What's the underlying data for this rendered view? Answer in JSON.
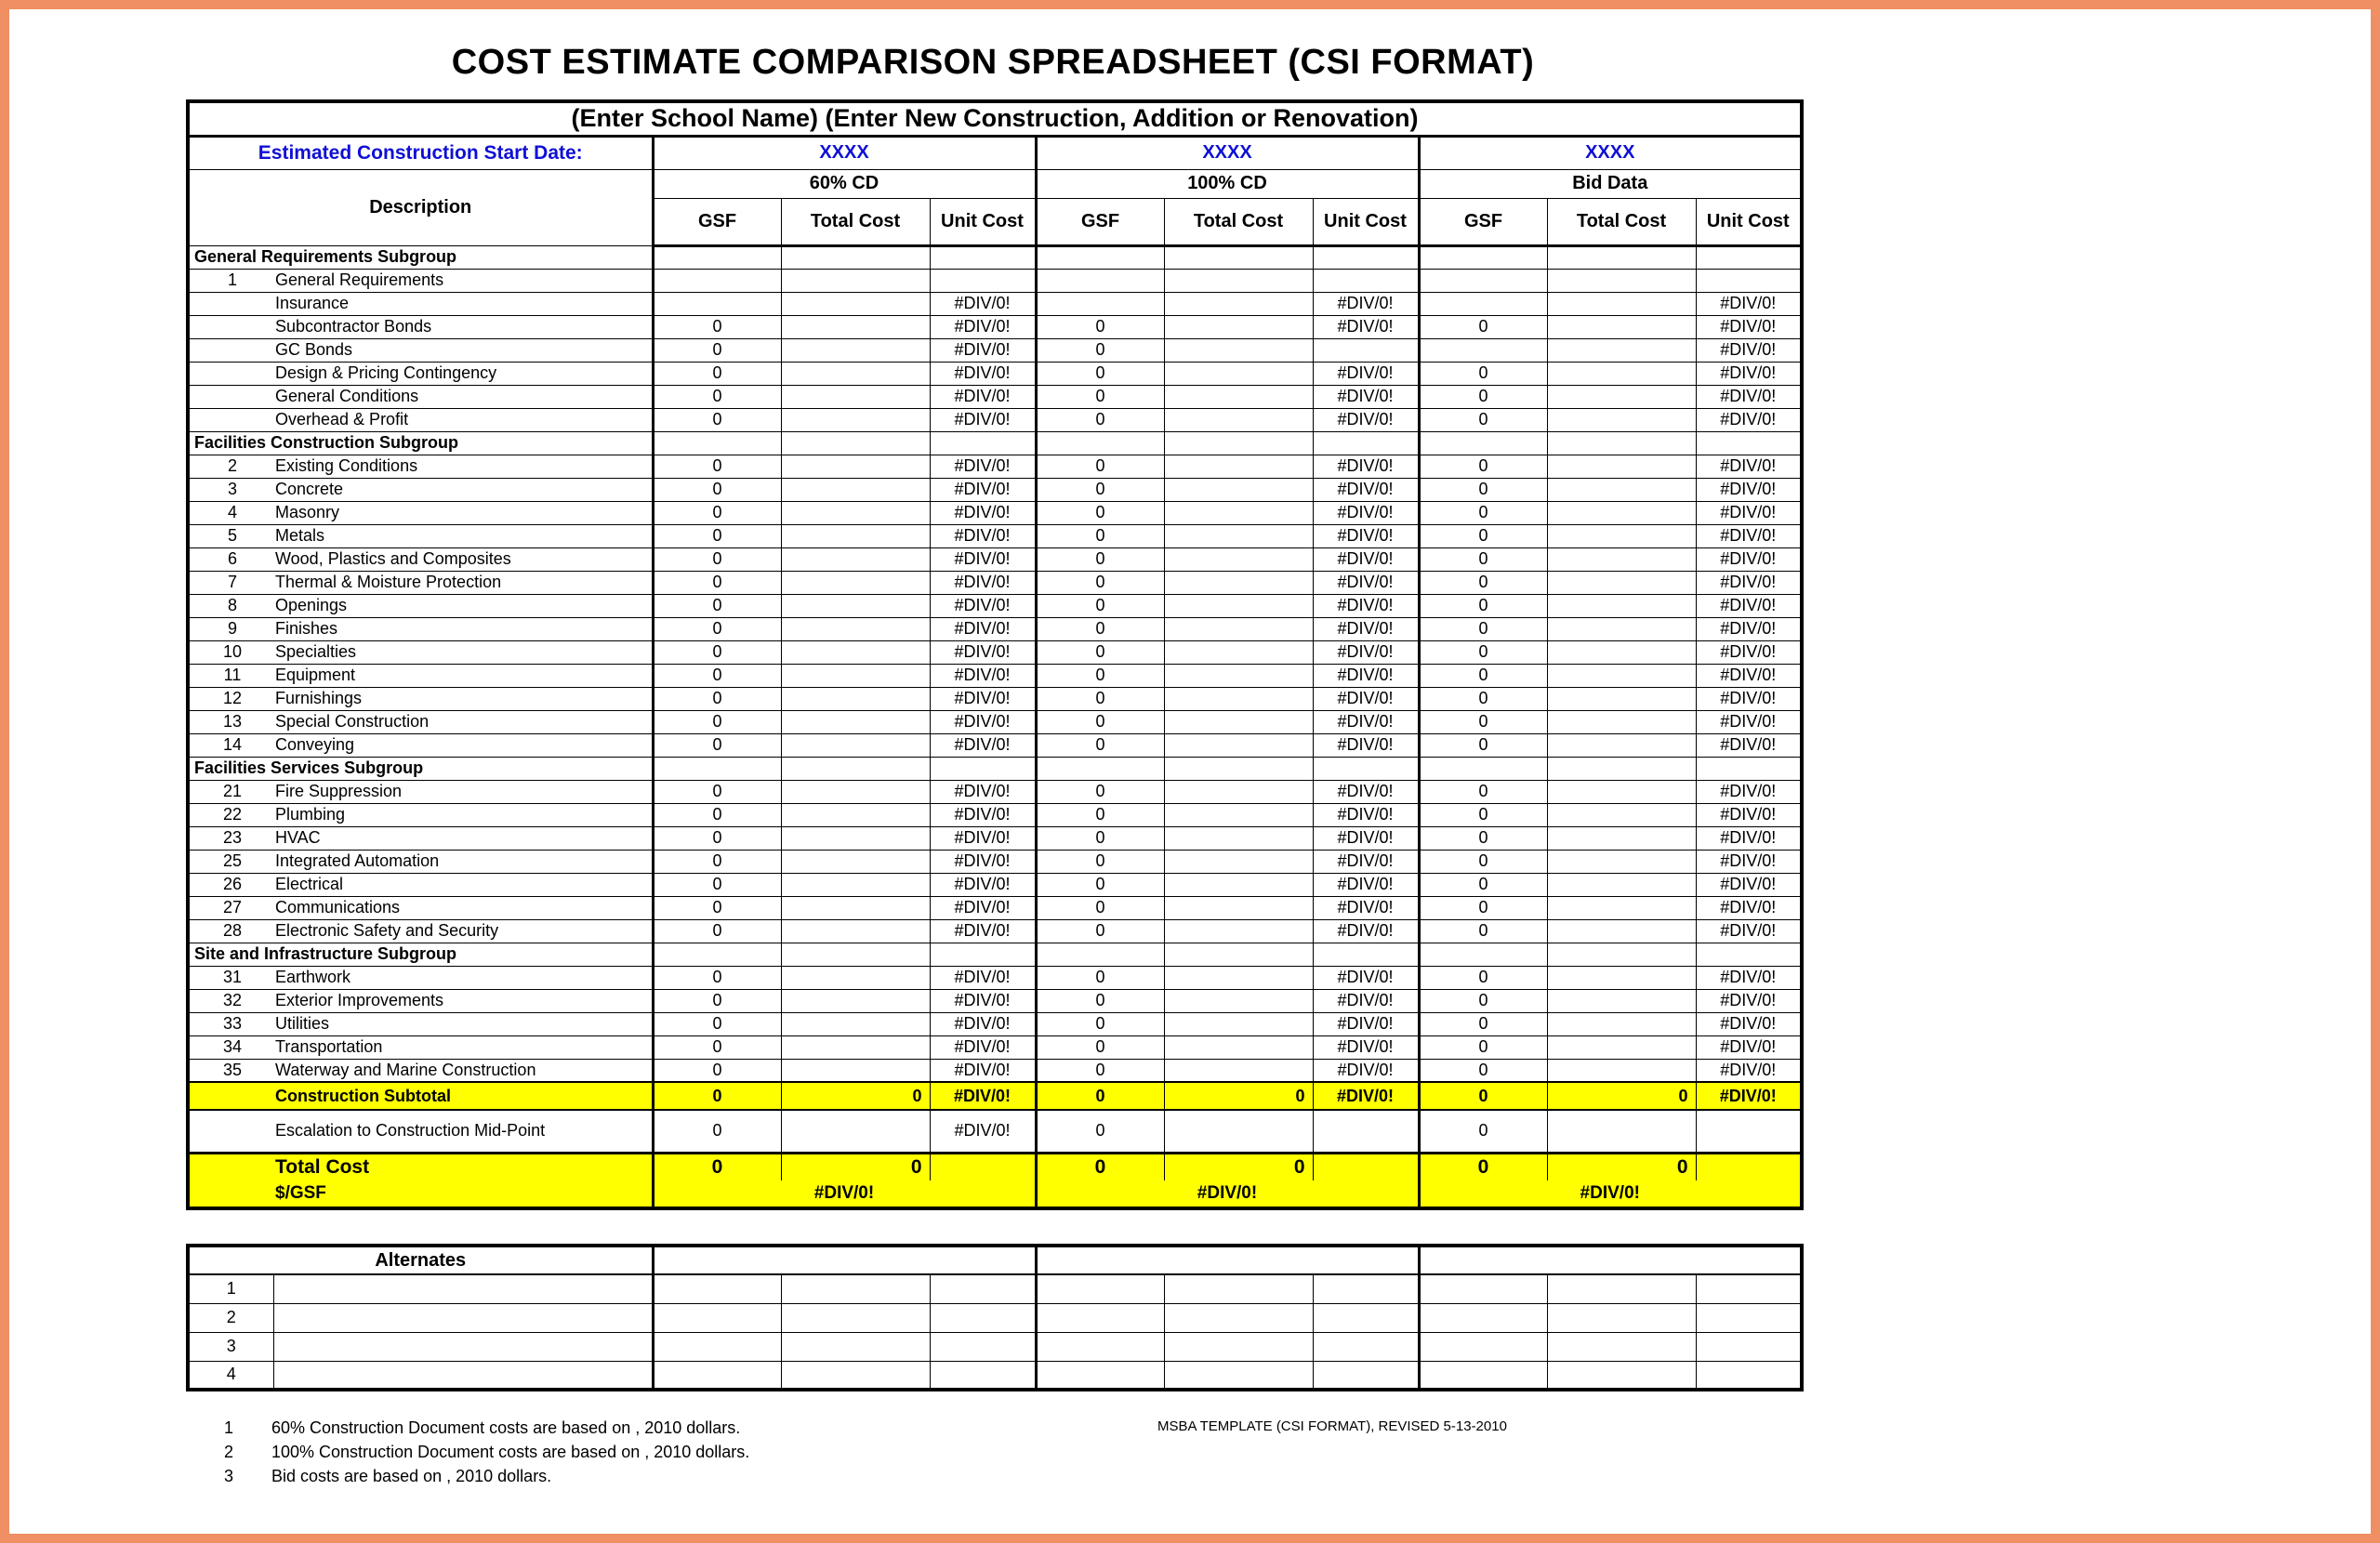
{
  "page": {
    "title": "COST ESTIMATE COMPARISON SPREADSHEET (CSI FORMAT)"
  },
  "colors": {
    "frame": "#F08F63",
    "highlight": "#FFFF00",
    "blue": "#0F0FD6"
  },
  "header": {
    "school_line": "(Enter School Name) (Enter New Construction, Addition or Renovation)",
    "start_date_label": "Estimated Construction Start Date:",
    "start_dates": [
      "XXXX",
      "XXXX",
      "XXXX"
    ],
    "groups": [
      "60% CD",
      "100% CD",
      "Bid Data"
    ],
    "description_label": "Description",
    "sub_columns": [
      "GSF",
      "Total Cost",
      "Unit Cost"
    ]
  },
  "main_rows": [
    {
      "type": "section",
      "label": "General Requirements Subgroup"
    },
    {
      "type": "item",
      "num": "1",
      "label": "General Requirements",
      "cells": [
        "",
        "",
        "",
        "",
        "",
        "",
        "",
        "",
        ""
      ]
    },
    {
      "type": "item",
      "num": "",
      "label": "Insurance",
      "cells": [
        "",
        "",
        "#DIV/0!",
        "",
        "",
        "#DIV/0!",
        "",
        "",
        "#DIV/0!"
      ]
    },
    {
      "type": "item",
      "num": "",
      "label": "Subcontractor Bonds",
      "cells": [
        "0",
        "",
        "#DIV/0!",
        "0",
        "",
        "#DIV/0!",
        "0",
        "",
        "#DIV/0!"
      ]
    },
    {
      "type": "item",
      "num": "",
      "label": "GC Bonds",
      "cells": [
        "0",
        "",
        "#DIV/0!",
        "0",
        "",
        "",
        "",
        "",
        "#DIV/0!"
      ]
    },
    {
      "type": "item",
      "num": "",
      "label": "Design & Pricing Contingency",
      "cells": [
        "0",
        "",
        "#DIV/0!",
        "0",
        "",
        "#DIV/0!",
        "0",
        "",
        "#DIV/0!"
      ]
    },
    {
      "type": "item",
      "num": "",
      "label": "General Conditions",
      "cells": [
        "0",
        "",
        "#DIV/0!",
        "0",
        "",
        "#DIV/0!",
        "0",
        "",
        "#DIV/0!"
      ]
    },
    {
      "type": "item",
      "num": "",
      "label": "Overhead & Profit",
      "cells": [
        "0",
        "",
        "#DIV/0!",
        "0",
        "",
        "#DIV/0!",
        "0",
        "",
        "#DIV/0!"
      ]
    },
    {
      "type": "section",
      "label": "Facilities Construction Subgroup"
    },
    {
      "type": "item",
      "num": "2",
      "label": "Existing Conditions",
      "cells": [
        "0",
        "",
        "#DIV/0!",
        "0",
        "",
        "#DIV/0!",
        "0",
        "",
        "#DIV/0!"
      ]
    },
    {
      "type": "item",
      "num": "3",
      "label": "Concrete",
      "cells": [
        "0",
        "",
        "#DIV/0!",
        "0",
        "",
        "#DIV/0!",
        "0",
        "",
        "#DIV/0!"
      ]
    },
    {
      "type": "item",
      "num": "4",
      "label": "Masonry",
      "cells": [
        "0",
        "",
        "#DIV/0!",
        "0",
        "",
        "#DIV/0!",
        "0",
        "",
        "#DIV/0!"
      ]
    },
    {
      "type": "item",
      "num": "5",
      "label": "Metals",
      "cells": [
        "0",
        "",
        "#DIV/0!",
        "0",
        "",
        "#DIV/0!",
        "0",
        "",
        "#DIV/0!"
      ]
    },
    {
      "type": "item",
      "num": "6",
      "label": "Wood, Plastics and Composites",
      "cells": [
        "0",
        "",
        "#DIV/0!",
        "0",
        "",
        "#DIV/0!",
        "0",
        "",
        "#DIV/0!"
      ]
    },
    {
      "type": "item",
      "num": "7",
      "label": "Thermal & Moisture Protection",
      "cells": [
        "0",
        "",
        "#DIV/0!",
        "0",
        "",
        "#DIV/0!",
        "0",
        "",
        "#DIV/0!"
      ]
    },
    {
      "type": "item",
      "num": "8",
      "label": "Openings",
      "cells": [
        "0",
        "",
        "#DIV/0!",
        "0",
        "",
        "#DIV/0!",
        "0",
        "",
        "#DIV/0!"
      ]
    },
    {
      "type": "item",
      "num": "9",
      "label": "Finishes",
      "cells": [
        "0",
        "",
        "#DIV/0!",
        "0",
        "",
        "#DIV/0!",
        "0",
        "",
        "#DIV/0!"
      ]
    },
    {
      "type": "item",
      "num": "10",
      "label": "Specialties",
      "cells": [
        "0",
        "",
        "#DIV/0!",
        "0",
        "",
        "#DIV/0!",
        "0",
        "",
        "#DIV/0!"
      ]
    },
    {
      "type": "item",
      "num": "11",
      "label": "Equipment",
      "cells": [
        "0",
        "",
        "#DIV/0!",
        "0",
        "",
        "#DIV/0!",
        "0",
        "",
        "#DIV/0!"
      ]
    },
    {
      "type": "item",
      "num": "12",
      "label": "Furnishings",
      "cells": [
        "0",
        "",
        "#DIV/0!",
        "0",
        "",
        "#DIV/0!",
        "0",
        "",
        "#DIV/0!"
      ]
    },
    {
      "type": "item",
      "num": "13",
      "label": "Special Construction",
      "cells": [
        "0",
        "",
        "#DIV/0!",
        "0",
        "",
        "#DIV/0!",
        "0",
        "",
        "#DIV/0!"
      ]
    },
    {
      "type": "item",
      "num": "14",
      "label": "Conveying",
      "cells": [
        "0",
        "",
        "#DIV/0!",
        "0",
        "",
        "#DIV/0!",
        "0",
        "",
        "#DIV/0!"
      ]
    },
    {
      "type": "section",
      "label": "Facilities Services Subgroup"
    },
    {
      "type": "item",
      "num": "21",
      "label": "Fire Suppression",
      "cells": [
        "0",
        "",
        "#DIV/0!",
        "0",
        "",
        "#DIV/0!",
        "0",
        "",
        "#DIV/0!"
      ]
    },
    {
      "type": "item",
      "num": "22",
      "label": "Plumbing",
      "cells": [
        "0",
        "",
        "#DIV/0!",
        "0",
        "",
        "#DIV/0!",
        "0",
        "",
        "#DIV/0!"
      ]
    },
    {
      "type": "item",
      "num": "23",
      "label": "HVAC",
      "cells": [
        "0",
        "",
        "#DIV/0!",
        "0",
        "",
        "#DIV/0!",
        "0",
        "",
        "#DIV/0!"
      ]
    },
    {
      "type": "item",
      "num": "25",
      "label": "Integrated Automation",
      "cells": [
        "0",
        "",
        "#DIV/0!",
        "0",
        "",
        "#DIV/0!",
        "0",
        "",
        "#DIV/0!"
      ]
    },
    {
      "type": "item",
      "num": "26",
      "label": "Electrical",
      "cells": [
        "0",
        "",
        "#DIV/0!",
        "0",
        "",
        "#DIV/0!",
        "0",
        "",
        "#DIV/0!"
      ]
    },
    {
      "type": "item",
      "num": "27",
      "label": "Communications",
      "cells": [
        "0",
        "",
        "#DIV/0!",
        "0",
        "",
        "#DIV/0!",
        "0",
        "",
        "#DIV/0!"
      ]
    },
    {
      "type": "item",
      "num": "28",
      "label": "Electronic Safety and Security",
      "cells": [
        "0",
        "",
        "#DIV/0!",
        "0",
        "",
        "#DIV/0!",
        "0",
        "",
        "#DIV/0!"
      ]
    },
    {
      "type": "section",
      "label": "Site and Infrastructure Subgroup"
    },
    {
      "type": "item",
      "num": "31",
      "label": "Earthwork",
      "cells": [
        "0",
        "",
        "#DIV/0!",
        "0",
        "",
        "#DIV/0!",
        "0",
        "",
        "#DIV/0!"
      ]
    },
    {
      "type": "item",
      "num": "32",
      "label": "Exterior Improvements",
      "cells": [
        "0",
        "",
        "#DIV/0!",
        "0",
        "",
        "#DIV/0!",
        "0",
        "",
        "#DIV/0!"
      ]
    },
    {
      "type": "item",
      "num": "33",
      "label": "Utilities",
      "cells": [
        "0",
        "",
        "#DIV/0!",
        "0",
        "",
        "#DIV/0!",
        "0",
        "",
        "#DIV/0!"
      ]
    },
    {
      "type": "item",
      "num": "34",
      "label": "Transportation",
      "cells": [
        "0",
        "",
        "#DIV/0!",
        "0",
        "",
        "#DIV/0!",
        "0",
        "",
        "#DIV/0!"
      ]
    },
    {
      "type": "item",
      "num": "35",
      "label": "Waterway and Marine Construction",
      "cells": [
        "0",
        "",
        "#DIV/0!",
        "0",
        "",
        "#DIV/0!",
        "0",
        "",
        "#DIV/0!"
      ]
    },
    {
      "type": "subtotal",
      "label": "Construction Subtotal",
      "cells": [
        "0",
        "0",
        "#DIV/0!",
        "0",
        "0",
        "#DIV/0!",
        "0",
        "0",
        "#DIV/0!"
      ]
    },
    {
      "type": "escalation",
      "num": "",
      "label": "Escalation to Construction Mid-Point",
      "cells": [
        "0",
        "",
        "#DIV/0!",
        "0",
        "",
        "",
        "0",
        "",
        ""
      ]
    },
    {
      "type": "total",
      "label": "Total Cost",
      "cells": [
        "0",
        "0",
        "",
        "0",
        "0",
        "",
        "0",
        "0",
        ""
      ]
    },
    {
      "type": "gsf",
      "label": "$/GSF",
      "group_cells": [
        "#DIV/0!",
        "#DIV/0!",
        "#DIV/0!"
      ]
    }
  ],
  "alternates": {
    "title": "Alternates",
    "rows": [
      "1",
      "2",
      "3",
      "4"
    ]
  },
  "footer": {
    "footnotes": [
      {
        "num": "1",
        "text": "60% Construction Document costs are based on  , 2010 dollars."
      },
      {
        "num": "2",
        "text": "100% Construction Document costs are based on  , 2010 dollars."
      },
      {
        "num": "3",
        "text": "Bid costs are based on  , 2010 dollars."
      }
    ],
    "template_note": "MSBA TEMPLATE (CSI FORMAT), REVISED  5-13-2010"
  }
}
